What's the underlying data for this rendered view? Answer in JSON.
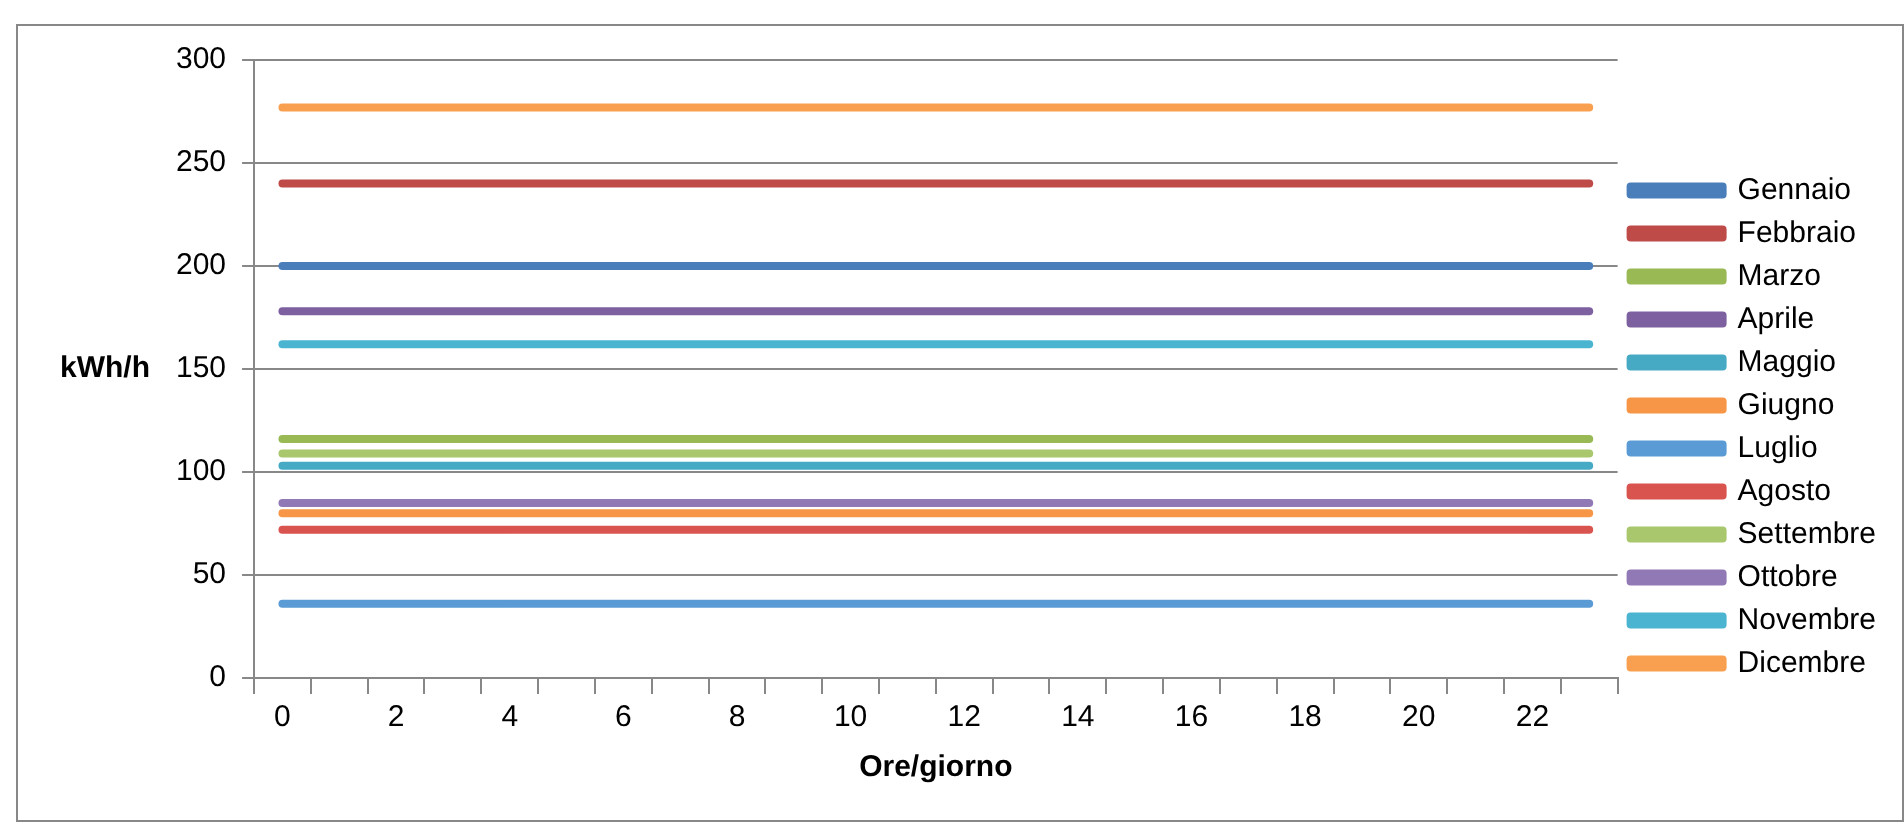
{
  "chart_data": {
    "type": "line",
    "xlabel": "Ore/giorno",
    "ylabel": "kWh/h",
    "categories": [
      "0",
      null,
      "2",
      null,
      "4",
      null,
      "6",
      null,
      "8",
      null,
      "10",
      null,
      "12",
      null,
      "14",
      null,
      "16",
      null,
      "18",
      null,
      "20",
      null,
      "22",
      null
    ],
    "series": [
      {
        "name": "Gennaio",
        "color": "#4a7ebb",
        "values": [
          200,
          200,
          200,
          200,
          200,
          200,
          200,
          200,
          200,
          200,
          200,
          200,
          200,
          200,
          200,
          200,
          200,
          200,
          200,
          200,
          200,
          200,
          200,
          200
        ]
      },
      {
        "name": "Febbraio",
        "color": "#be4b48",
        "values": [
          240,
          240,
          240,
          240,
          240,
          240,
          240,
          240,
          240,
          240,
          240,
          240,
          240,
          240,
          240,
          240,
          240,
          240,
          240,
          240,
          240,
          240,
          240,
          240
        ]
      },
      {
        "name": "Marzo",
        "color": "#98b954",
        "values": [
          116,
          116,
          116,
          116,
          116,
          116,
          116,
          116,
          116,
          116,
          116,
          116,
          116,
          116,
          116,
          116,
          116,
          116,
          116,
          116,
          116,
          116,
          116,
          116
        ]
      },
      {
        "name": "Aprile",
        "color": "#7d60a0",
        "values": [
          178,
          178,
          178,
          178,
          178,
          178,
          178,
          178,
          178,
          178,
          178,
          178,
          178,
          178,
          178,
          178,
          178,
          178,
          178,
          178,
          178,
          178,
          178,
          178
        ]
      },
      {
        "name": "Maggio",
        "color": "#46aac5",
        "values": [
          103,
          103,
          103,
          103,
          103,
          103,
          103,
          103,
          103,
          103,
          103,
          103,
          103,
          103,
          103,
          103,
          103,
          103,
          103,
          103,
          103,
          103,
          103,
          103
        ]
      },
      {
        "name": "Giugno",
        "color": "#f79646",
        "values": [
          80,
          80,
          80,
          80,
          80,
          80,
          80,
          80,
          80,
          80,
          80,
          80,
          80,
          80,
          80,
          80,
          80,
          80,
          80,
          80,
          80,
          80,
          80,
          80
        ]
      },
      {
        "name": "Luglio",
        "color": "#5b9bd5",
        "values": [
          36,
          36,
          36,
          36,
          36,
          36,
          36,
          36,
          36,
          36,
          36,
          36,
          36,
          36,
          36,
          36,
          36,
          36,
          36,
          36,
          36,
          36,
          36,
          36
        ]
      },
      {
        "name": "Agosto",
        "color": "#d9534f",
        "values": [
          72,
          72,
          72,
          72,
          72,
          72,
          72,
          72,
          72,
          72,
          72,
          72,
          72,
          72,
          72,
          72,
          72,
          72,
          72,
          72,
          72,
          72,
          72,
          72
        ]
      },
      {
        "name": "Settembre",
        "color": "#a9c86e",
        "values": [
          109,
          109,
          109,
          109,
          109,
          109,
          109,
          109,
          109,
          109,
          109,
          109,
          109,
          109,
          109,
          109,
          109,
          109,
          109,
          109,
          109,
          109,
          109,
          109
        ]
      },
      {
        "name": "Ottobre",
        "color": "#9179b5",
        "values": [
          85,
          85,
          85,
          85,
          85,
          85,
          85,
          85,
          85,
          85,
          85,
          85,
          85,
          85,
          85,
          85,
          85,
          85,
          85,
          85,
          85,
          85,
          85,
          85
        ]
      },
      {
        "name": "Novembre",
        "color": "#4bb4d0",
        "values": [
          162,
          162,
          162,
          162,
          162,
          162,
          162,
          162,
          162,
          162,
          162,
          162,
          162,
          162,
          162,
          162,
          162,
          162,
          162,
          162,
          162,
          162,
          162,
          162
        ]
      },
      {
        "name": "Dicembre",
        "color": "#f9a050",
        "values": [
          277,
          277,
          277,
          277,
          277,
          277,
          277,
          277,
          277,
          277,
          277,
          277,
          277,
          277,
          277,
          277,
          277,
          277,
          277,
          277,
          277,
          277,
          277,
          277
        ]
      }
    ],
    "ylim": [
      0,
      300
    ],
    "yticks": [
      0,
      50,
      100,
      150,
      200,
      250,
      300
    ],
    "grid": "y",
    "legend": "right",
    "marker": "none",
    "line_style": "solid"
  }
}
